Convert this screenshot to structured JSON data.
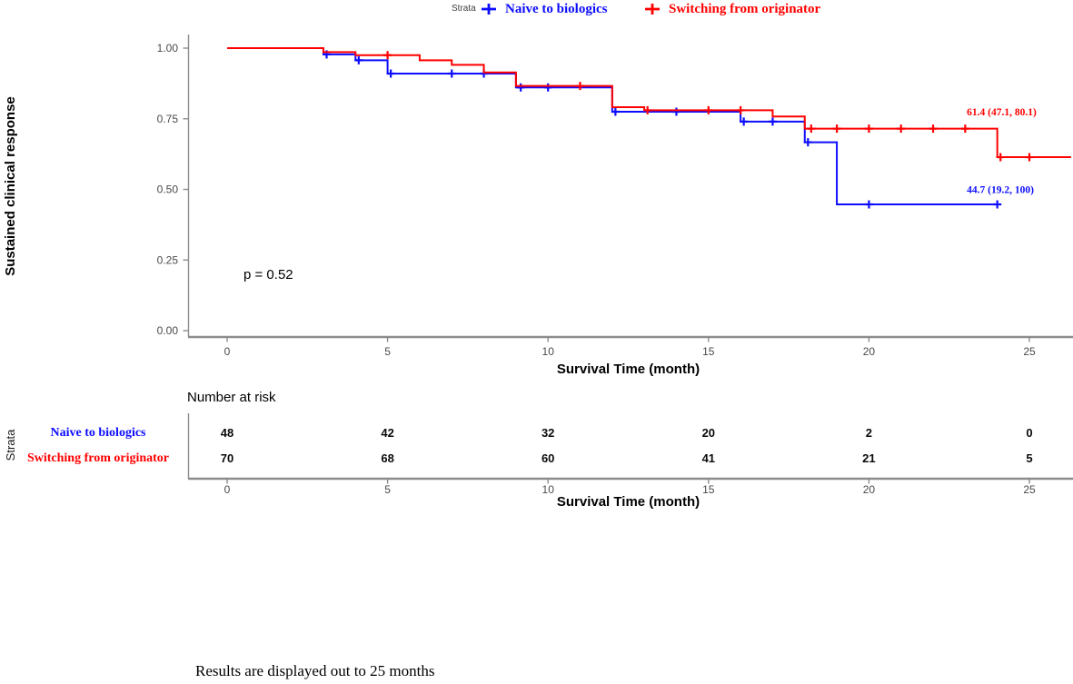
{
  "legend": {
    "title": "Strata",
    "items": [
      {
        "label": "Naive to biologics",
        "color": "#0d0dff"
      },
      {
        "label": "Switching from originator",
        "color": "#ff0000"
      }
    ]
  },
  "chart_data": {
    "type": "line",
    "subtype": "kaplan-meier-step-survival",
    "title": "",
    "xlabel": "Survival Time (month)",
    "ylabel": "Sustained clinical response",
    "xlim": [
      0,
      26.4
    ],
    "ylim": [
      0,
      1
    ],
    "xticks": [
      0,
      5,
      10,
      15,
      20,
      25
    ],
    "yticks": [
      1.0,
      0.75,
      0.5,
      0.25,
      0.0
    ],
    "grid": false,
    "legend_position": "top",
    "pvalue": "p = 0.52",
    "series": [
      {
        "name": "Naive to biologics",
        "color": "#0d0dff",
        "steps": [
          [
            0,
            1.0
          ],
          [
            3,
            0.978
          ],
          [
            4,
            0.957
          ],
          [
            5,
            0.91
          ],
          [
            9,
            0.861
          ],
          [
            12,
            0.775
          ],
          [
            16,
            0.74
          ],
          [
            18,
            0.667
          ],
          [
            19,
            0.447
          ],
          [
            24,
            0.447
          ]
        ],
        "censors": [
          [
            3.1,
            0.978
          ],
          [
            4.1,
            0.957
          ],
          [
            5.1,
            0.91
          ],
          [
            7,
            0.91
          ],
          [
            8,
            0.91
          ],
          [
            9.15,
            0.861
          ],
          [
            10,
            0.861
          ],
          [
            12.1,
            0.775
          ],
          [
            14,
            0.775
          ],
          [
            16.1,
            0.74
          ],
          [
            17,
            0.74
          ],
          [
            18.1,
            0.667
          ],
          [
            20,
            0.447
          ],
          [
            24,
            0.447
          ]
        ],
        "annotation": {
          "text": "44.7 (19.2, 100)",
          "x": 23.05,
          "y": 0.487
        }
      },
      {
        "name": "Switching from originator",
        "color": "#ff0000",
        "steps": [
          [
            0,
            1.0
          ],
          [
            3,
            0.986
          ],
          [
            4,
            0.975
          ],
          [
            6,
            0.957
          ],
          [
            7,
            0.941
          ],
          [
            8,
            0.914
          ],
          [
            9,
            0.866
          ],
          [
            12,
            0.791
          ],
          [
            13,
            0.78
          ],
          [
            17,
            0.758
          ],
          [
            18,
            0.715
          ],
          [
            24,
            0.614
          ],
          [
            26.3,
            0.614
          ]
        ],
        "censors": [
          [
            5,
            0.975
          ],
          [
            11,
            0.866
          ],
          [
            13.1,
            0.78
          ],
          [
            15,
            0.78
          ],
          [
            16,
            0.78
          ],
          [
            18.2,
            0.715
          ],
          [
            19,
            0.715
          ],
          [
            20,
            0.715
          ],
          [
            21,
            0.715
          ],
          [
            22,
            0.715
          ],
          [
            23,
            0.715
          ],
          [
            24.1,
            0.614
          ],
          [
            25,
            0.614
          ]
        ],
        "annotation": {
          "text": "61.4 (47.1, 80.1)",
          "x": 23.05,
          "y": 0.762
        }
      }
    ]
  },
  "risk_table": {
    "title": "Number at risk",
    "strata_label": "Strata",
    "axis_label": "Survival Time (month)",
    "times": [
      0,
      5,
      10,
      15,
      20,
      25
    ],
    "rows": [
      {
        "label": "Naive to biologics",
        "color": "#0d0dff",
        "values": [
          "48",
          "42",
          "32",
          "20",
          "2",
          "0"
        ]
      },
      {
        "label": "Switching from originator",
        "color": "#ff0000",
        "values": [
          "70",
          "68",
          "60",
          "41",
          "21",
          "5"
        ]
      }
    ]
  },
  "caption": "Results are displayed out to 25 months"
}
